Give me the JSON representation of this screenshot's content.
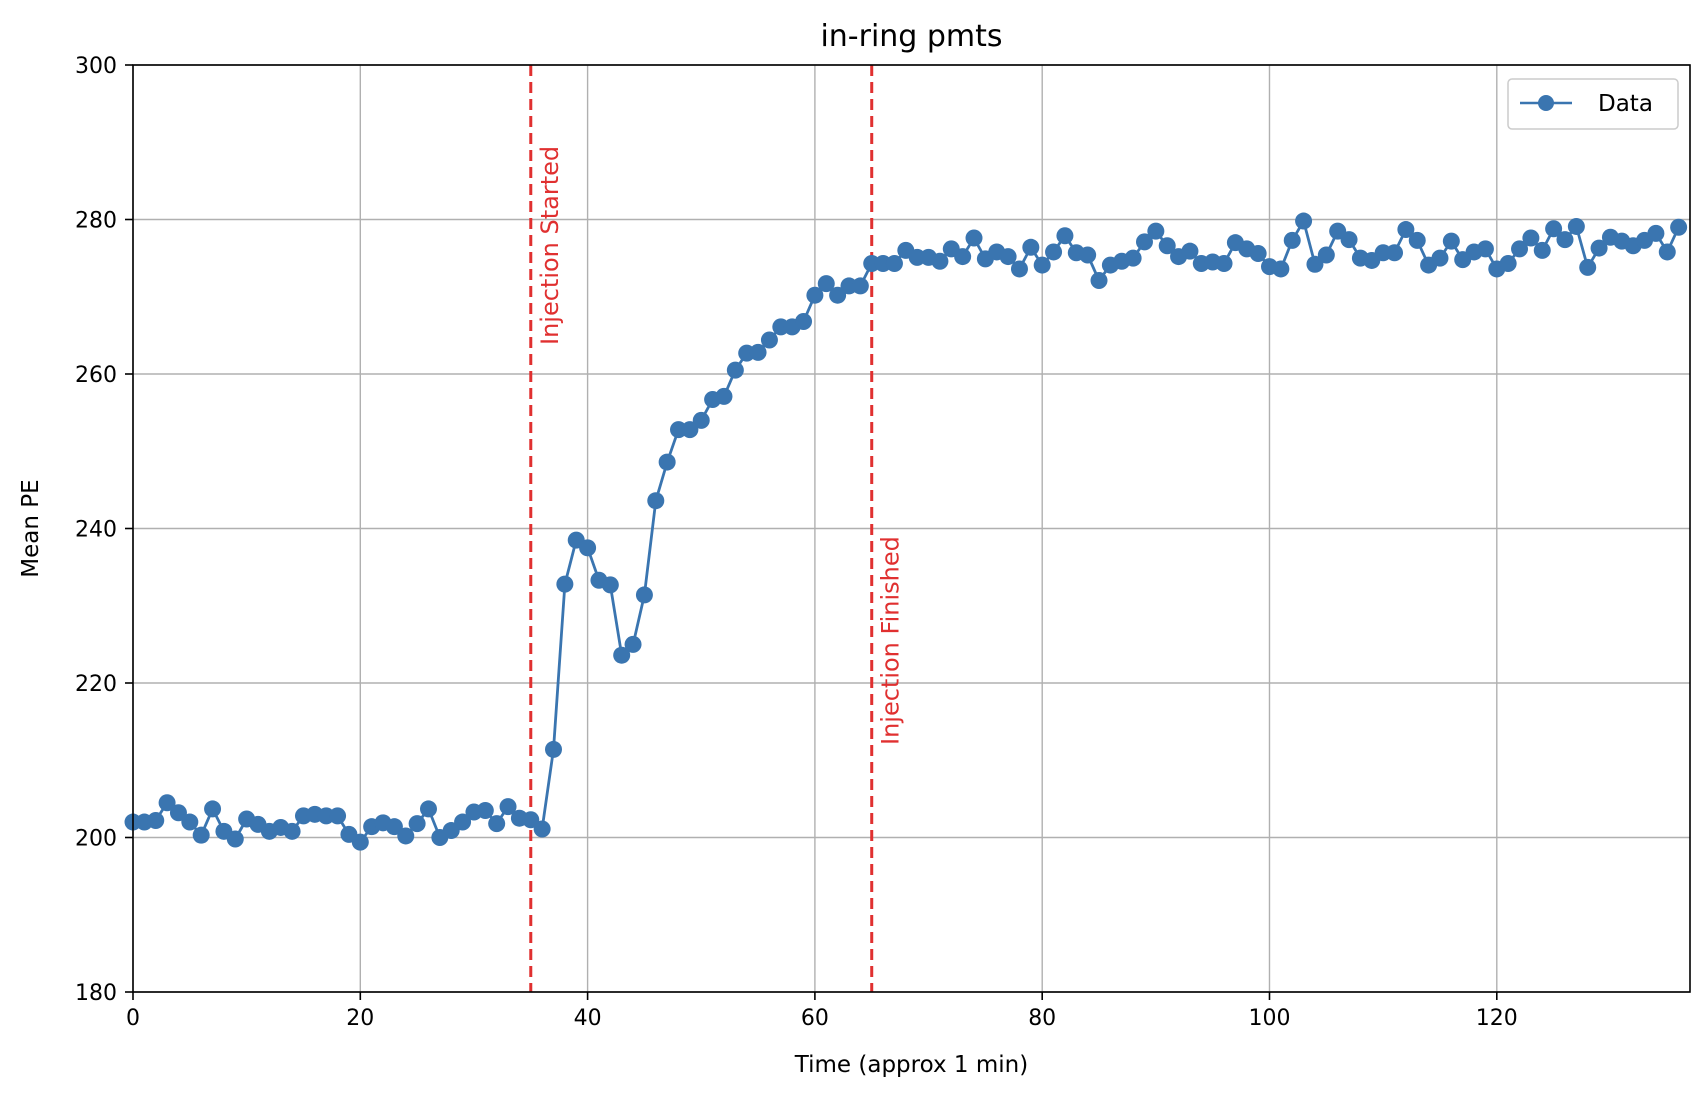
{
  "chart_data": {
    "type": "line",
    "title": "in-ring pmts",
    "xlabel": "Time (approx 1 min)",
    "ylabel": "Mean PE",
    "xlim": [
      0,
      137
    ],
    "ylim": [
      180,
      300
    ],
    "xticks": [
      0,
      20,
      40,
      60,
      80,
      100,
      120
    ],
    "yticks": [
      180,
      200,
      220,
      240,
      260,
      280,
      300
    ],
    "grid": true,
    "legend_position": "top-right",
    "series": [
      {
        "name": "Data",
        "color": "#3a75b0",
        "marker": "circle",
        "x": [
          0,
          1,
          2,
          3,
          4,
          5,
          6,
          7,
          8,
          9,
          10,
          11,
          12,
          13,
          14,
          15,
          16,
          17,
          18,
          19,
          20,
          21,
          22,
          23,
          24,
          25,
          26,
          27,
          28,
          29,
          30,
          31,
          32,
          33,
          34,
          35,
          36,
          37,
          38,
          39,
          40,
          41,
          42,
          43,
          44,
          45,
          46,
          47,
          48,
          49,
          50,
          51,
          52,
          53,
          54,
          55,
          56,
          57,
          58,
          59,
          60,
          61,
          62,
          63,
          64,
          65,
          66,
          67,
          68,
          69,
          70,
          71,
          72,
          73,
          74,
          75,
          76,
          77,
          78,
          79,
          80,
          81,
          82,
          83,
          84,
          85,
          86,
          87,
          88,
          89,
          90,
          91,
          92,
          93,
          94,
          95,
          96,
          97,
          98,
          99,
          100,
          101,
          102,
          103,
          104,
          105,
          106,
          107,
          108,
          109,
          110,
          111,
          112,
          113,
          114,
          115,
          116,
          117,
          118,
          119,
          120,
          121,
          122,
          123,
          124,
          125,
          126,
          127,
          128,
          129,
          130,
          131,
          132,
          133,
          134,
          135,
          136
        ],
        "values": [
          202,
          202,
          202.2,
          204.5,
          203.2,
          202,
          200.3,
          203.7,
          200.8,
          199.8,
          202.4,
          201.7,
          200.8,
          201.3,
          200.8,
          202.8,
          203,
          202.8,
          202.8,
          200.4,
          199.4,
          201.4,
          201.9,
          201.4,
          200.2,
          201.8,
          203.7,
          200,
          200.9,
          202,
          203.3,
          203.5,
          201.8,
          204,
          202.5,
          202.3,
          201.1,
          211.4,
          232.8,
          238.5,
          237.5,
          233.3,
          232.7,
          223.6,
          225,
          231.4,
          243.6,
          248.6,
          252.8,
          252.8,
          254,
          256.7,
          257.1,
          260.5,
          262.7,
          262.8,
          264.4,
          266.1,
          266.1,
          266.8,
          270.2,
          271.7,
          270.2,
          271.4,
          271.4,
          274.3,
          274.3,
          274.3,
          276,
          275.1,
          275.1,
          274.6,
          276.2,
          275.2,
          277.6,
          274.9,
          275.8,
          275.2,
          273.6,
          276.4,
          274.1,
          275.8,
          277.9,
          275.7,
          275.4,
          272.1,
          274.1,
          274.6,
          275,
          277.1,
          278.5,
          276.6,
          275.2,
          275.9,
          274.3,
          274.5,
          274.3,
          277,
          276.2,
          275.6,
          273.9,
          273.6,
          277.3,
          279.8,
          274.2,
          275.4,
          278.5,
          277.4,
          275,
          274.7,
          275.7,
          275.7,
          278.7,
          277.3,
          274.1,
          275,
          277.2,
          274.8,
          275.8,
          276.2,
          273.6,
          274.3,
          276.2,
          277.6,
          276,
          278.8,
          277.4,
          279.1,
          273.8,
          276.3,
          277.7,
          277.2,
          276.6,
          277.3,
          278.2,
          275.8,
          279
        ]
      }
    ],
    "annotations": [
      {
        "type": "vline",
        "x": 35,
        "label": "Injection Started",
        "color": "#e03030",
        "style": "dashed"
      },
      {
        "type": "vline",
        "x": 65,
        "label": "Injection Finished",
        "color": "#e03030",
        "style": "dashed"
      }
    ]
  }
}
